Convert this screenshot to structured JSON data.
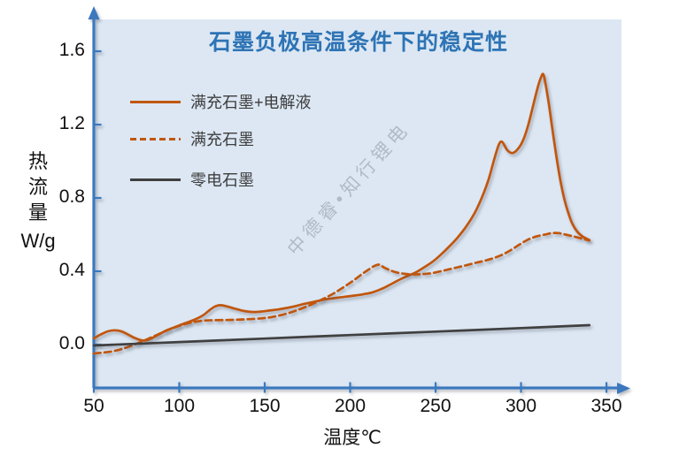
{
  "title": "石墨负极高温条件下的稳定性",
  "watermark": "中德睿•知行锂电",
  "colors": {
    "title": "#2E74B5",
    "axis": "#3A78BE",
    "plot_bg": "#DCE7F3",
    "series_orange": "#C1570F",
    "series_gray": "#3F3F3F",
    "watermark": "#8E96A1"
  },
  "y_axis": {
    "name_chars": [
      "热",
      "流",
      "量"
    ],
    "unit": "W/g",
    "tick_labels": [
      "1.6",
      "1.2",
      "0.8",
      "0.4",
      "0.0"
    ]
  },
  "x_axis": {
    "label": "温度℃",
    "tick_labels": [
      "50",
      "100",
      "150",
      "200",
      "250",
      "300",
      "350"
    ]
  },
  "legend": [
    {
      "label": "满充石墨+电解液",
      "line": "solid",
      "color": "#C1570F"
    },
    {
      "label": "满充石墨",
      "line": "dashed",
      "color": "#C1570F"
    },
    {
      "label": "零电石墨",
      "line": "solid",
      "color": "#3F3F3F"
    }
  ],
  "chart_data": {
    "type": "line",
    "title": "石墨负极高温条件下的稳定性",
    "xlabel": "温度℃",
    "ylabel": "热流量 W/g",
    "xlim": [
      50,
      350
    ],
    "ylim": [
      -0.05,
      1.7
    ],
    "x_ticks": [
      50,
      100,
      150,
      200,
      250,
      300,
      350
    ],
    "y_ticks": [
      0.0,
      0.4,
      0.8,
      1.2,
      1.6
    ],
    "grid": false,
    "legend_position": "upper-left",
    "background": "#DCE7F3",
    "series": [
      {
        "name": "满充石墨+电解液",
        "style": "solid",
        "color": "#C1570F",
        "points": [
          [
            50,
            0.034
          ],
          [
            54,
            0.055
          ],
          [
            58,
            0.072
          ],
          [
            62,
            0.078
          ],
          [
            66,
            0.073
          ],
          [
            70,
            0.055
          ],
          [
            74,
            0.036
          ],
          [
            78,
            0.023
          ],
          [
            81,
            0.024
          ],
          [
            84,
            0.035
          ],
          [
            88,
            0.055
          ],
          [
            92,
            0.075
          ],
          [
            96,
            0.09
          ],
          [
            100,
            0.105
          ],
          [
            105,
            0.122
          ],
          [
            110,
            0.14
          ],
          [
            114,
            0.16
          ],
          [
            118,
            0.19
          ],
          [
            121,
            0.208
          ],
          [
            124,
            0.215
          ],
          [
            128,
            0.208
          ],
          [
            133,
            0.195
          ],
          [
            138,
            0.183
          ],
          [
            143,
            0.178
          ],
          [
            148,
            0.18
          ],
          [
            153,
            0.186
          ],
          [
            158,
            0.192
          ],
          [
            163,
            0.2
          ],
          [
            168,
            0.21
          ],
          [
            173,
            0.222
          ],
          [
            178,
            0.232
          ],
          [
            183,
            0.242
          ],
          [
            188,
            0.25
          ],
          [
            193,
            0.256
          ],
          [
            198,
            0.262
          ],
          [
            203,
            0.268
          ],
          [
            208,
            0.275
          ],
          [
            213,
            0.285
          ],
          [
            218,
            0.302
          ],
          [
            223,
            0.325
          ],
          [
            228,
            0.35
          ],
          [
            233,
            0.372
          ],
          [
            238,
            0.392
          ],
          [
            243,
            0.42
          ],
          [
            248,
            0.45
          ],
          [
            253,
            0.49
          ],
          [
            258,
            0.535
          ],
          [
            263,
            0.585
          ],
          [
            268,
            0.645
          ],
          [
            273,
            0.72
          ],
          [
            277,
            0.8
          ],
          [
            281,
            0.9
          ],
          [
            284,
            1.0
          ],
          [
            287,
            1.09
          ],
          [
            289,
            1.105
          ],
          [
            292,
            1.06
          ],
          [
            295,
            1.045
          ],
          [
            298,
            1.065
          ],
          [
            301,
            1.11
          ],
          [
            304,
            1.19
          ],
          [
            307,
            1.3
          ],
          [
            310,
            1.41
          ],
          [
            312,
            1.465
          ],
          [
            313,
            1.475
          ],
          [
            314,
            1.44
          ],
          [
            316,
            1.33
          ],
          [
            318,
            1.2
          ],
          [
            320,
            1.07
          ],
          [
            322,
            0.95
          ],
          [
            324,
            0.85
          ],
          [
            326,
            0.77
          ],
          [
            328,
            0.71
          ],
          [
            330,
            0.66
          ],
          [
            333,
            0.615
          ],
          [
            336,
            0.59
          ],
          [
            340,
            0.57
          ]
        ]
      },
      {
        "name": "满充石墨",
        "style": "dashed",
        "color": "#C1570F",
        "points": [
          [
            50,
            -0.048
          ],
          [
            55,
            -0.044
          ],
          [
            60,
            -0.038
          ],
          [
            65,
            -0.028
          ],
          [
            70,
            -0.013
          ],
          [
            75,
            0.005
          ],
          [
            80,
            0.024
          ],
          [
            85,
            0.045
          ],
          [
            90,
            0.066
          ],
          [
            95,
            0.086
          ],
          [
            100,
            0.102
          ],
          [
            105,
            0.116
          ],
          [
            110,
            0.126
          ],
          [
            115,
            0.131
          ],
          [
            120,
            0.133
          ],
          [
            127,
            0.134
          ],
          [
            134,
            0.136
          ],
          [
            141,
            0.139
          ],
          [
            148,
            0.143
          ],
          [
            154,
            0.15
          ],
          [
            160,
            0.162
          ],
          [
            166,
            0.178
          ],
          [
            172,
            0.198
          ],
          [
            178,
            0.222
          ],
          [
            184,
            0.248
          ],
          [
            190,
            0.277
          ],
          [
            196,
            0.312
          ],
          [
            202,
            0.35
          ],
          [
            207,
            0.385
          ],
          [
            211,
            0.41
          ],
          [
            214,
            0.428
          ],
          [
            217,
            0.436
          ],
          [
            220,
            0.42
          ],
          [
            224,
            0.403
          ],
          [
            228,
            0.392
          ],
          [
            233,
            0.385
          ],
          [
            238,
            0.383
          ],
          [
            243,
            0.385
          ],
          [
            248,
            0.39
          ],
          [
            254,
            0.402
          ],
          [
            259,
            0.413
          ],
          [
            264,
            0.424
          ],
          [
            269,
            0.435
          ],
          [
            274,
            0.447
          ],
          [
            279,
            0.458
          ],
          [
            284,
            0.472
          ],
          [
            289,
            0.49
          ],
          [
            294,
            0.515
          ],
          [
            299,
            0.545
          ],
          [
            304,
            0.572
          ],
          [
            309,
            0.59
          ],
          [
            314,
            0.6
          ],
          [
            318,
            0.608
          ],
          [
            322,
            0.608
          ],
          [
            326,
            0.6
          ],
          [
            330,
            0.592
          ],
          [
            334,
            0.582
          ],
          [
            337,
            0.575
          ],
          [
            340,
            0.568
          ]
        ]
      },
      {
        "name": "零电石墨",
        "style": "solid",
        "color": "#3F3F3F",
        "points": [
          [
            50,
            -0.005
          ],
          [
            100,
            0.014
          ],
          [
            150,
            0.033
          ],
          [
            200,
            0.052
          ],
          [
            250,
            0.071
          ],
          [
            300,
            0.09
          ],
          [
            340,
            0.106
          ]
        ]
      }
    ]
  }
}
